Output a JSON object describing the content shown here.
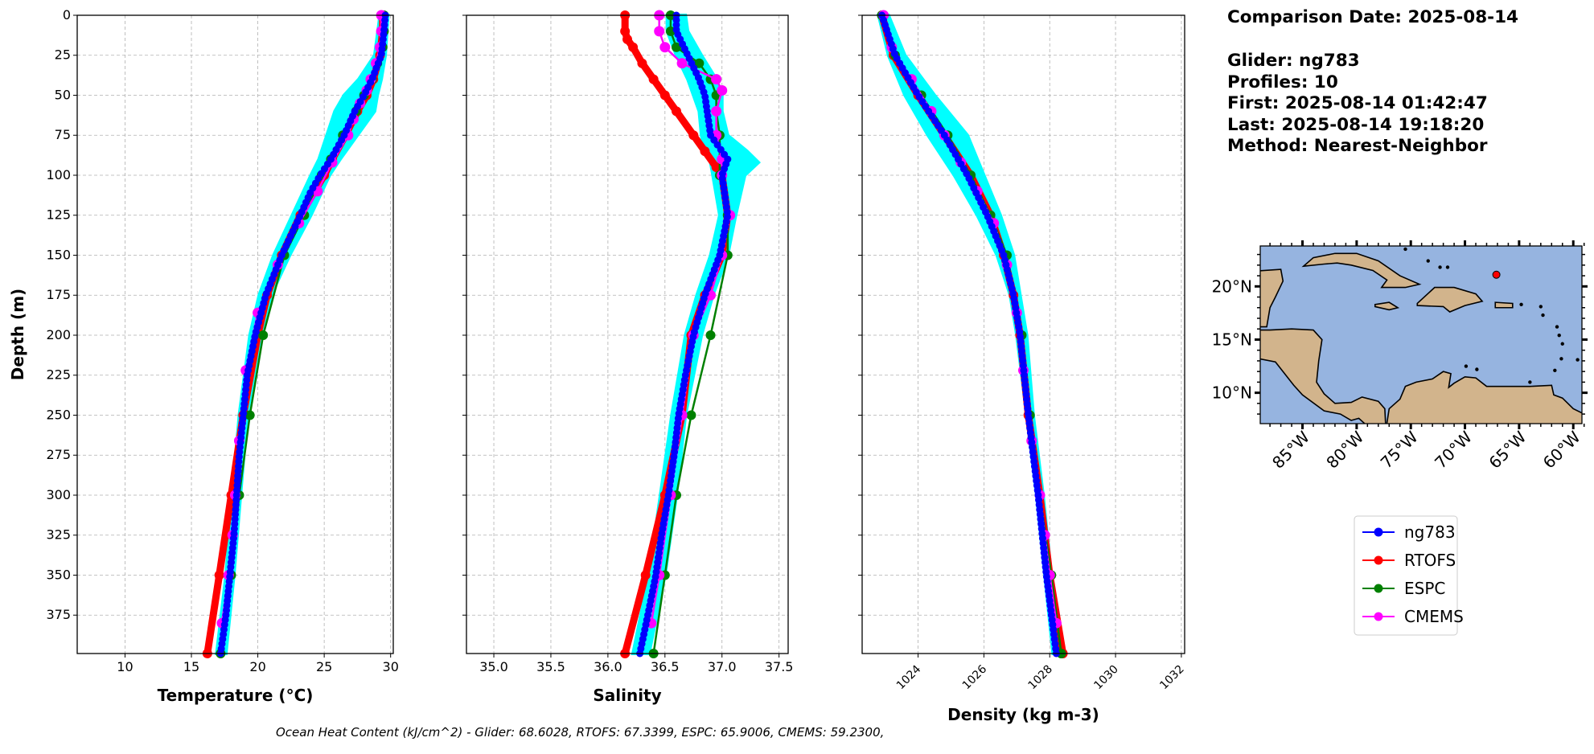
{
  "info": {
    "lines": [
      "Comparison Date: 2025-08-14",
      "",
      "Glider: ng783",
      "Profiles: 10",
      "First: 2025-08-14 01:42:47",
      "Last: 2025-08-14 19:18:20",
      "Method: Nearest-Neighbor"
    ]
  },
  "caption": "Ocean Heat Content (kJ/cm^2) - Glider: 68.6028,  RTOFS: 67.3399,  ESPC: 65.9006,  CMEMS: 59.2300,",
  "colors": {
    "ng783": "#0000ff",
    "RTOFS": "#ff0000",
    "ESPC": "#008000",
    "CMEMS": "#ff00ff",
    "glider_profiles": "#00ffff",
    "ocean": "#96b4e0",
    "land": "#d2b48c"
  },
  "chart_data": [
    {
      "type": "line",
      "xlabel": "Temperature (°C)",
      "ylabel": "Depth (m)",
      "xlim": [
        6.4,
        30.2
      ],
      "ylim": [
        399,
        0
      ],
      "xticks": [
        10,
        15,
        20,
        25,
        30
      ],
      "yticks": [
        0,
        25,
        50,
        75,
        100,
        125,
        150,
        175,
        200,
        225,
        250,
        275,
        300,
        325,
        350,
        375
      ],
      "grid": true,
      "glider_envelope": {
        "depth": [
          0,
          25,
          40,
          50,
          60,
          75,
          90,
          100,
          125,
          150,
          175,
          200,
          250,
          300,
          350,
          399
        ],
        "min": [
          29.2,
          28.8,
          27.6,
          26.5,
          25.8,
          25.2,
          24.6,
          24.0,
          22.6,
          21.2,
          20.1,
          19.4,
          18.6,
          18.1,
          17.6,
          16.9
        ],
        "max": [
          29.8,
          29.6,
          29.3,
          29.0,
          28.8,
          27.5,
          26.2,
          25.4,
          24.0,
          22.4,
          21.0,
          20.2,
          19.2,
          18.7,
          18.2,
          17.6
        ]
      },
      "series": [
        {
          "name": "RTOFS",
          "depth": [
            0,
            10,
            25,
            40,
            50,
            60,
            75,
            90,
            100,
            125,
            150,
            175,
            200,
            250,
            300,
            350,
            399
          ],
          "values": [
            29.4,
            29.4,
            29.2,
            28.7,
            28.2,
            27.5,
            26.6,
            25.6,
            25.0,
            23.2,
            21.8,
            20.7,
            20.0,
            18.9,
            18.0,
            17.1,
            16.2
          ]
        },
        {
          "name": "ESPC",
          "depth": [
            0,
            10,
            20,
            30,
            40,
            50,
            60,
            75,
            90,
            100,
            125,
            150,
            200,
            250,
            300,
            350,
            399
          ],
          "values": [
            29.5,
            29.5,
            29.4,
            29.0,
            28.6,
            28.0,
            27.4,
            26.4,
            25.5,
            24.8,
            23.5,
            22.0,
            20.4,
            19.4,
            18.6,
            18.0,
            17.2
          ]
        },
        {
          "name": "CMEMS",
          "depth": [
            0,
            10,
            20,
            30,
            40,
            47,
            55,
            65,
            75,
            92,
            110,
            130,
            156,
            186,
            222,
            266,
            300,
            325,
            350,
            380
          ],
          "values": [
            29.3,
            29.3,
            29.2,
            28.9,
            28.5,
            28.2,
            27.7,
            27.2,
            26.8,
            25.6,
            24.5,
            23.1,
            21.5,
            20.0,
            19.1,
            18.6,
            18.3,
            18.1,
            17.8,
            17.3
          ]
        },
        {
          "name": "ng783",
          "depth": [
            0,
            10,
            25,
            40,
            50,
            60,
            75,
            90,
            100,
            110,
            125,
            150,
            175,
            200,
            225,
            250,
            275,
            300,
            325,
            350,
            375,
            399
          ],
          "values": [
            29.6,
            29.5,
            29.3,
            28.6,
            28.0,
            27.3,
            26.5,
            25.5,
            24.7,
            24.0,
            23.2,
            21.8,
            20.6,
            19.8,
            19.2,
            18.9,
            18.6,
            18.4,
            18.2,
            17.9,
            17.6,
            17.2
          ]
        }
      ]
    },
    {
      "type": "line",
      "xlabel": "Salinity",
      "ylabel": "",
      "xlim": [
        34.76,
        37.58
      ],
      "ylim": [
        399,
        0
      ],
      "xticks": [
        35.0,
        35.5,
        36.0,
        36.5,
        37.0,
        37.5
      ],
      "grid": true,
      "glider_envelope": {
        "depth": [
          0,
          10,
          25,
          40,
          50,
          60,
          75,
          85,
          92,
          100,
          125,
          150,
          175,
          200,
          250,
          300,
          350,
          399
        ],
        "min": [
          36.52,
          36.52,
          36.6,
          36.7,
          36.75,
          36.8,
          36.82,
          36.85,
          36.9,
          36.92,
          36.98,
          36.9,
          36.78,
          36.68,
          36.56,
          36.46,
          36.36,
          36.22
        ],
        "max": [
          36.68,
          36.7,
          36.82,
          36.95,
          37.0,
          37.0,
          37.05,
          37.22,
          37.32,
          37.2,
          37.12,
          37.05,
          36.92,
          36.82,
          36.68,
          36.6,
          36.5,
          36.36
        ]
      },
      "series": [
        {
          "name": "RTOFS",
          "depth": [
            0,
            10,
            15,
            20,
            30,
            40,
            50,
            60,
            75,
            85,
            95,
            100,
            125,
            150,
            175,
            200,
            250,
            300,
            350,
            399
          ],
          "values": [
            36.15,
            36.15,
            36.17,
            36.22,
            36.3,
            36.4,
            36.5,
            36.6,
            36.75,
            36.85,
            36.95,
            37.0,
            37.05,
            37.0,
            36.85,
            36.73,
            36.65,
            36.5,
            36.33,
            36.15
          ]
        },
        {
          "name": "ESPC",
          "depth": [
            0,
            10,
            20,
            30,
            40,
            50,
            60,
            75,
            100,
            125,
            150,
            200,
            250,
            300,
            350,
            399
          ],
          "values": [
            36.55,
            36.55,
            36.6,
            36.8,
            36.9,
            36.95,
            36.95,
            36.98,
            36.98,
            37.05,
            37.05,
            36.9,
            36.73,
            36.6,
            36.5,
            36.4
          ]
        },
        {
          "name": "CMEMS",
          "depth": [
            0,
            10,
            20,
            30,
            40,
            47,
            60,
            75,
            90,
            100,
            125,
            150,
            175,
            200,
            250,
            300,
            350,
            380
          ],
          "values": [
            36.45,
            36.45,
            36.5,
            36.65,
            36.95,
            37.0,
            36.95,
            36.95,
            37.0,
            37.0,
            37.07,
            37.0,
            36.9,
            36.75,
            36.65,
            36.55,
            36.45,
            36.38
          ]
        },
        {
          "name": "ng783",
          "depth": [
            0,
            10,
            25,
            40,
            50,
            75,
            90,
            100,
            125,
            150,
            175,
            200,
            225,
            250,
            275,
            300,
            325,
            350,
            375,
            399
          ],
          "values": [
            36.6,
            36.6,
            36.7,
            36.8,
            36.85,
            36.9,
            37.05,
            37.0,
            37.05,
            36.98,
            36.85,
            36.75,
            36.68,
            36.62,
            36.58,
            36.53,
            36.47,
            36.42,
            36.35,
            36.28
          ]
        }
      ]
    },
    {
      "type": "line",
      "xlabel": "Density (kg m-3)",
      "ylabel": "",
      "xlim": [
        1022.3,
        1032.1
      ],
      "ylim": [
        399,
        0
      ],
      "xticks": [
        1024,
        1026,
        1028,
        1030,
        1032
      ],
      "grid": true,
      "glider_envelope": {
        "depth": [
          0,
          25,
          50,
          75,
          100,
          125,
          150,
          175,
          200,
          250,
          300,
          350,
          399
        ],
        "min": [
          1022.8,
          1023.1,
          1023.6,
          1024.3,
          1025.1,
          1025.8,
          1026.4,
          1026.8,
          1027.0,
          1027.3,
          1027.6,
          1027.85,
          1028.1
        ],
        "max": [
          1023.1,
          1023.6,
          1024.5,
          1025.5,
          1026.0,
          1026.5,
          1026.9,
          1027.1,
          1027.3,
          1027.5,
          1027.8,
          1028.05,
          1028.35
        ]
      },
      "series": [
        {
          "name": "RTOFS",
          "depth": [
            0,
            25,
            50,
            75,
            100,
            125,
            150,
            175,
            200,
            250,
            300,
            350,
            399
          ],
          "values": [
            1022.9,
            1023.25,
            1024.0,
            1024.8,
            1025.6,
            1026.2,
            1026.6,
            1026.9,
            1027.1,
            1027.35,
            1027.7,
            1028.0,
            1028.4
          ]
        },
        {
          "name": "ESPC",
          "depth": [
            0,
            25,
            50,
            75,
            100,
            125,
            150,
            200,
            250,
            300,
            350,
            399
          ],
          "values": [
            1022.9,
            1023.3,
            1024.1,
            1024.9,
            1025.6,
            1026.2,
            1026.7,
            1027.15,
            1027.4,
            1027.7,
            1028.05,
            1028.35
          ]
        },
        {
          "name": "CMEMS",
          "depth": [
            0,
            20,
            40,
            60,
            75,
            92,
            110,
            130,
            156,
            186,
            222,
            266,
            300,
            325,
            350,
            380
          ],
          "values": [
            1022.95,
            1023.2,
            1023.8,
            1024.4,
            1024.8,
            1025.3,
            1025.8,
            1026.3,
            1026.7,
            1027.0,
            1027.2,
            1027.45,
            1027.7,
            1027.85,
            1028.0,
            1028.2
          ]
        },
        {
          "name": "ng783",
          "depth": [
            0,
            25,
            50,
            75,
            100,
            125,
            150,
            175,
            200,
            250,
            300,
            350,
            399
          ],
          "values": [
            1022.9,
            1023.3,
            1024.0,
            1024.8,
            1025.5,
            1026.1,
            1026.6,
            1026.9,
            1027.1,
            1027.35,
            1027.65,
            1027.9,
            1028.2
          ]
        }
      ]
    }
  ],
  "map": {
    "lon_range": [
      -88.9,
      -59.2
    ],
    "lat_range": [
      7.1,
      23.8
    ],
    "lon_ticks": [
      "85°W",
      "80°W",
      "75°W",
      "70°W",
      "65°W",
      "60°W"
    ],
    "lon_tick_values": [
      -85,
      -80,
      -75,
      -70,
      -65,
      -60
    ],
    "lat_ticks": [
      "10°N",
      "15°N",
      "20°N"
    ],
    "lat_tick_values": [
      10,
      15,
      20
    ],
    "glider_location": {
      "lon": -67.1,
      "lat": 21.1
    }
  },
  "legend": {
    "placement": "lower-right",
    "entries": [
      "ng783",
      "RTOFS",
      "ESPC",
      "CMEMS"
    ]
  }
}
